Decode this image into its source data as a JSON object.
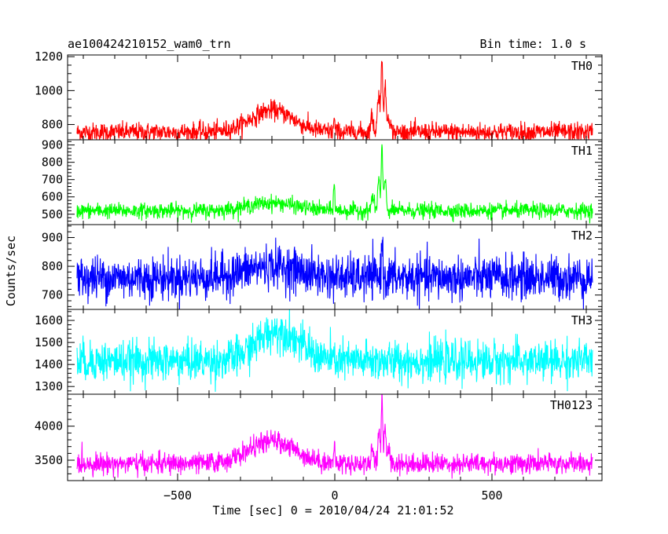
{
  "header": {
    "obs_name": "ae100424210152_wam0_trn",
    "bin_time": "Bin time: 1.0 s"
  },
  "chart_data": {
    "type": "line",
    "xlabel": "Time [sec] 0 = 2010/04/24 21:01:52",
    "ylabel": "Counts/sec",
    "xlim": [
      -850,
      850
    ],
    "xticks": [
      -500,
      0,
      500
    ],
    "xtick_labels": [
      "−500",
      "0",
      "500"
    ],
    "x_range": [
      -820,
      820
    ],
    "panels": [
      {
        "name": "TH0",
        "color": "#ff0000",
        "ylim": [
          710,
          1210
        ],
        "yticks": [
          800,
          1000,
          1200
        ],
        "yticks_minor_step": 50,
        "baseline": 755,
        "noise": 28,
        "hump": {
          "center": -200,
          "width": 95,
          "amp": 130
        },
        "spikes": [
          {
            "t": -2,
            "amp": 70,
            "w": 3
          },
          {
            "t": 118,
            "amp": 90,
            "w": 6
          },
          {
            "t": 140,
            "amp": 220,
            "w": 6
          },
          {
            "t": 150,
            "amp": 380,
            "w": 4
          },
          {
            "t": 160,
            "amp": 250,
            "w": 5
          },
          {
            "t": 172,
            "amp": 100,
            "w": 6
          }
        ]
      },
      {
        "name": "TH1",
        "color": "#00ff00",
        "ylim": [
          440,
          930
        ],
        "yticks": [
          500,
          600,
          700,
          800,
          900
        ],
        "yticks_minor_step": 20,
        "baseline": 520,
        "noise": 22,
        "hump": {
          "center": -200,
          "width": 110,
          "amp": 45
        },
        "spikes": [
          {
            "t": -2,
            "amp": 150,
            "w": 3
          },
          {
            "t": 120,
            "amp": 80,
            "w": 6
          },
          {
            "t": 140,
            "amp": 180,
            "w": 5
          },
          {
            "t": 150,
            "amp": 380,
            "w": 3
          },
          {
            "t": 160,
            "amp": 180,
            "w": 5
          }
        ]
      },
      {
        "name": "TH2",
        "color": "#0000ff",
        "ylim": [
          650,
          945
        ],
        "yticks": [
          700,
          800,
          900
        ],
        "yticks_minor_step": 20,
        "baseline": 760,
        "noise": 38,
        "hump": {
          "center": -200,
          "width": 120,
          "amp": 40
        },
        "spikes": [
          {
            "t": 150,
            "amp": 150,
            "w": 3
          }
        ]
      },
      {
        "name": "TH3",
        "color": "#00ffff",
        "ylim": [
          1265,
          1650
        ],
        "yticks": [
          1300,
          1400,
          1500,
          1600
        ],
        "yticks_minor_step": 20,
        "baseline": 1415,
        "noise": 45,
        "hump": {
          "center": -180,
          "width": 95,
          "amp": 140
        },
        "spikes": []
      },
      {
        "name": "TH0123",
        "color": "#ff00ff",
        "ylim": [
          3200,
          4470
        ],
        "yticks": [
          3500,
          4000
        ],
        "yticks_minor_step": 100,
        "baseline": 3450,
        "noise": 75,
        "hump": {
          "center": -200,
          "width": 105,
          "amp": 330
        },
        "spikes": [
          {
            "t": -2,
            "amp": 200,
            "w": 3
          },
          {
            "t": 120,
            "amp": 200,
            "w": 6
          },
          {
            "t": 140,
            "amp": 450,
            "w": 5
          },
          {
            "t": 150,
            "amp": 900,
            "w": 3
          },
          {
            "t": 160,
            "amp": 550,
            "w": 5
          },
          {
            "t": 172,
            "amp": 180,
            "w": 6
          }
        ]
      }
    ]
  }
}
